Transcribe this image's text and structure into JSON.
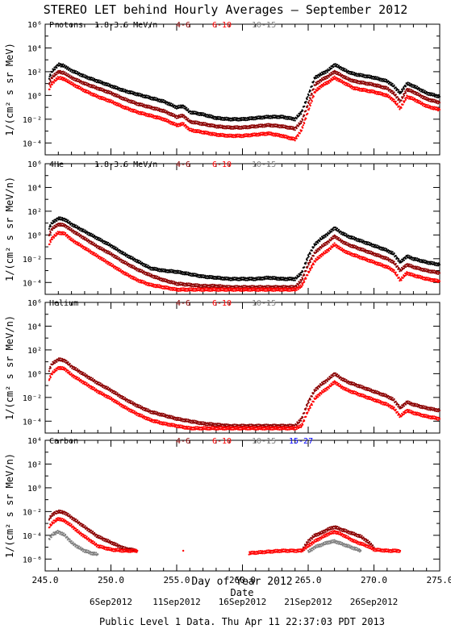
{
  "title": "STEREO LET behind Hourly Averages – September 2012",
  "xlabel": "Day of Year 2012",
  "date_label": "Date",
  "footer": "Public Level 1 Data. Thu Apr 11 22:37:03 PDT 2013",
  "x_ticks": [
    "245.0",
    "250.0",
    "255.0",
    "260.0",
    "265.0",
    "270.0",
    "275.0"
  ],
  "date_ticks": [
    {
      "label": "6Sep2012",
      "x": 250.0
    },
    {
      "label": "11Sep2012",
      "x": 255.0
    },
    {
      "label": "16Sep2012",
      "x": 260.0
    },
    {
      "label": "21Sep2012",
      "x": 265.0
    },
    {
      "label": "26Sep2012",
      "x": 270.0
    }
  ],
  "colors": {
    "e1": "#000000",
    "e2": "#8b0000",
    "e3": "#ff0000",
    "e4": "#808080",
    "e5": "#0000ff"
  },
  "chart_data": [
    {
      "type": "scatter",
      "species": "Protons",
      "energy_label": "1.8-3.6 MeV/n",
      "legend": [
        "4-6",
        "6-10",
        "10-15"
      ],
      "ylabel": "1/(cm² s sr MeV)",
      "y_ticks": [
        "10⁶",
        "10⁴",
        "10²",
        "10⁰",
        "10⁻²",
        "10⁻⁴"
      ],
      "ylim_log10": [
        -5,
        6
      ],
      "xlim": [
        245,
        275
      ],
      "series": [
        {
          "color_key": "e1",
          "x": [
            245.3,
            245.5,
            246.0,
            246.4,
            247.0,
            248.0,
            249.0,
            250.0,
            251.0,
            252.0,
            253.0,
            254.0,
            255.0,
            255.5,
            256.0,
            257.0,
            258.0,
            259.0,
            260.0,
            261.0,
            262.0,
            263.0,
            264.0,
            264.5,
            265.0,
            265.5,
            266.0,
            266.5,
            267.0,
            267.5,
            268.0,
            268.5,
            269.0,
            270.0,
            271.0,
            271.5,
            272.0,
            272.5,
            273.0,
            274.0,
            275.0
          ],
          "y": [
            1.5,
            2.0,
            2.6,
            2.5,
            2.1,
            1.6,
            1.2,
            0.8,
            0.4,
            0.1,
            -0.2,
            -0.5,
            -1.0,
            -0.9,
            -1.4,
            -1.6,
            -1.9,
            -2.0,
            -2.0,
            -1.9,
            -1.8,
            -1.8,
            -2.0,
            -1.4,
            0.0,
            1.5,
            1.8,
            2.1,
            2.6,
            2.3,
            2.0,
            1.8,
            1.7,
            1.5,
            1.2,
            0.8,
            0.2,
            1.0,
            0.8,
            0.2,
            -0.1
          ]
        },
        {
          "color_key": "e2",
          "x": [
            245.3,
            245.5,
            246.0,
            246.4,
            247.0,
            248.0,
            249.0,
            250.0,
            251.0,
            252.0,
            253.0,
            254.0,
            255.0,
            255.5,
            256.0,
            257.0,
            258.0,
            259.0,
            260.0,
            261.0,
            262.0,
            263.0,
            264.0,
            264.5,
            265.0,
            265.5,
            266.0,
            266.5,
            267.0,
            267.5,
            268.0,
            268.5,
            269.0,
            270.0,
            271.0,
            271.5,
            272.0,
            272.5,
            273.0,
            274.0,
            275.0
          ],
          "y": [
            1.0,
            1.5,
            2.0,
            1.9,
            1.5,
            1.0,
            0.6,
            0.2,
            -0.3,
            -0.7,
            -1.0,
            -1.3,
            -1.8,
            -1.7,
            -2.2,
            -2.4,
            -2.6,
            -2.7,
            -2.7,
            -2.6,
            -2.5,
            -2.6,
            -2.8,
            -2.2,
            -0.7,
            0.9,
            1.3,
            1.6,
            2.0,
            1.7,
            1.4,
            1.2,
            1.1,
            0.9,
            0.6,
            0.2,
            -0.5,
            0.5,
            0.3,
            -0.3,
            -0.6
          ]
        },
        {
          "color_key": "e3",
          "x": [
            245.3,
            245.5,
            246.0,
            246.4,
            247.0,
            248.0,
            249.0,
            250.0,
            251.0,
            252.0,
            253.0,
            254.0,
            255.0,
            255.5,
            256.0,
            257.0,
            258.0,
            259.0,
            260.0,
            261.0,
            262.0,
            263.0,
            264.0,
            264.5,
            265.0,
            265.5,
            266.0,
            266.5,
            267.0,
            267.5,
            268.0,
            268.5,
            269.0,
            270.0,
            271.0,
            271.5,
            272.0,
            272.5,
            273.0,
            274.0,
            275.0
          ],
          "y": [
            0.5,
            1.0,
            1.5,
            1.4,
            1.0,
            0.4,
            -0.1,
            -0.5,
            -1.0,
            -1.4,
            -1.7,
            -2.0,
            -2.5,
            -2.4,
            -2.9,
            -3.1,
            -3.3,
            -3.4,
            -3.4,
            -3.3,
            -3.2,
            -3.4,
            -3.7,
            -2.9,
            -1.3,
            0.3,
            0.8,
            1.1,
            1.5,
            1.2,
            0.9,
            0.6,
            0.5,
            0.3,
            0.0,
            -0.4,
            -1.1,
            -0.1,
            -0.3,
            -0.9,
            -1.2
          ]
        }
      ]
    },
    {
      "type": "scatter",
      "species": "4He",
      "energy_label": "1.8-3.6 MeV/n",
      "legend": [
        "4-6",
        "6-10",
        "10-15"
      ],
      "ylabel": "1/(cm² s sr MeV/n)",
      "y_ticks": [
        "10⁶",
        "10⁴",
        "10²",
        "10⁰",
        "10⁻²",
        "10⁻⁴"
      ],
      "ylim_log10": [
        -5,
        6
      ],
      "xlim": [
        245,
        275
      ],
      "series": [
        {
          "color_key": "e1",
          "x": [
            245.3,
            245.5,
            246.0,
            246.5,
            247.0,
            248.0,
            249.0,
            250.0,
            251.0,
            252.0,
            253.0,
            254.0,
            255.0,
            256.0,
            257.0,
            258.0,
            259.0,
            260.0,
            261.0,
            262.0,
            263.0,
            264.0,
            264.5,
            265.0,
            265.5,
            266.0,
            266.5,
            267.0,
            267.5,
            268.0,
            268.5,
            269.0,
            270.0,
            271.0,
            271.5,
            272.0,
            272.5,
            273.0,
            274.0,
            275.0
          ],
          "y": [
            0.6,
            1.0,
            1.4,
            1.3,
            0.9,
            0.3,
            -0.3,
            -0.9,
            -1.6,
            -2.2,
            -2.8,
            -3.0,
            -3.1,
            -3.3,
            -3.5,
            -3.6,
            -3.7,
            -3.7,
            -3.7,
            -3.6,
            -3.7,
            -3.7,
            -3.2,
            -1.8,
            -0.8,
            -0.3,
            0.1,
            0.6,
            0.2,
            -0.1,
            -0.3,
            -0.5,
            -0.9,
            -1.3,
            -1.6,
            -2.3,
            -1.8,
            -2.0,
            -2.3,
            -2.5
          ]
        },
        {
          "color_key": "e2",
          "x": [
            245.3,
            245.5,
            246.0,
            246.5,
            247.0,
            248.0,
            249.0,
            250.0,
            251.0,
            252.0,
            253.0,
            254.0,
            255.0,
            256.0,
            257.0,
            258.0,
            259.0,
            260.0,
            261.0,
            262.0,
            263.0,
            264.0,
            264.5,
            265.0,
            265.5,
            266.0,
            266.5,
            267.0,
            267.5,
            268.0,
            268.5,
            269.0,
            270.0,
            271.0,
            271.5,
            272.0,
            272.5,
            273.0,
            274.0,
            275.0
          ],
          "y": [
            0.0,
            0.5,
            0.9,
            0.8,
            0.4,
            -0.3,
            -1.0,
            -1.6,
            -2.3,
            -2.9,
            -3.4,
            -3.8,
            -4.1,
            -4.2,
            -4.3,
            -4.3,
            -4.4,
            -4.4,
            -4.4,
            -4.4,
            -4.4,
            -4.4,
            -3.8,
            -2.5,
            -1.5,
            -1.0,
            -0.6,
            -0.1,
            -0.5,
            -0.8,
            -1.0,
            -1.2,
            -1.6,
            -2.0,
            -2.3,
            -3.0,
            -2.5,
            -2.7,
            -3.0,
            -3.2
          ]
        },
        {
          "color_key": "e3",
          "x": [
            245.3,
            245.5,
            246.0,
            246.5,
            247.0,
            248.0,
            249.0,
            250.0,
            251.0,
            252.0,
            253.0,
            254.0,
            255.0,
            256.0,
            257.0,
            258.0,
            259.0,
            260.0,
            261.0,
            262.0,
            263.0,
            264.0,
            264.5,
            265.0,
            265.5,
            266.0,
            266.5,
            267.0,
            267.5,
            268.0,
            268.5,
            269.0,
            270.0,
            271.0,
            271.5,
            272.0,
            272.5,
            273.0,
            274.0,
            275.0
          ],
          "y": [
            -0.8,
            -0.3,
            0.2,
            0.1,
            -0.4,
            -1.1,
            -1.8,
            -2.5,
            -3.2,
            -3.8,
            -4.2,
            -4.4,
            -4.6,
            -4.6,
            -4.6,
            -4.6,
            -4.6,
            -4.6,
            -4.6,
            -4.6,
            -4.6,
            -4.6,
            -4.3,
            -3.2,
            -2.2,
            -1.7,
            -1.3,
            -0.8,
            -1.2,
            -1.5,
            -1.7,
            -1.9,
            -2.3,
            -2.7,
            -3.0,
            -3.8,
            -3.2,
            -3.4,
            -3.7,
            -3.9
          ]
        }
      ]
    },
    {
      "type": "scatter",
      "species": "Helium",
      "energy_label": "",
      "legend": [
        "4-6",
        "6-10",
        "10-15"
      ],
      "ylabel": "1/(cm² s sr MeV/n)",
      "y_ticks": [
        "10⁶",
        "10⁴",
        "10²",
        "10⁰",
        "10⁻²",
        "10⁻⁴"
      ],
      "ylim_log10": [
        -5,
        6
      ],
      "xlim": [
        245,
        275
      ],
      "series": [
        {
          "color_key": "e2",
          "x": [
            245.3,
            245.5,
            246.0,
            246.5,
            247.0,
            248.0,
            249.0,
            250.0,
            251.0,
            252.0,
            253.0,
            254.0,
            255.0,
            256.0,
            257.0,
            258.0,
            259.0,
            260.0,
            261.0,
            262.0,
            263.0,
            264.0,
            264.5,
            265.0,
            265.5,
            266.0,
            266.5,
            267.0,
            267.5,
            268.0,
            268.5,
            269.0,
            270.0,
            271.0,
            271.5,
            272.0,
            272.5,
            273.0,
            274.0,
            275.0
          ],
          "y": [
            0.3,
            0.8,
            1.2,
            1.1,
            0.6,
            -0.1,
            -0.8,
            -1.4,
            -2.1,
            -2.7,
            -3.2,
            -3.5,
            -3.8,
            -4.0,
            -4.2,
            -4.3,
            -4.4,
            -4.4,
            -4.4,
            -4.4,
            -4.4,
            -4.4,
            -3.8,
            -2.4,
            -1.4,
            -0.9,
            -0.5,
            0.0,
            -0.4,
            -0.7,
            -0.9,
            -1.1,
            -1.5,
            -1.9,
            -2.2,
            -2.9,
            -2.4,
            -2.6,
            -2.9,
            -3.1
          ]
        },
        {
          "color_key": "e3",
          "x": [
            245.3,
            245.5,
            246.0,
            246.5,
            247.0,
            248.0,
            249.0,
            250.0,
            251.0,
            252.0,
            253.0,
            254.0,
            255.0,
            256.0,
            257.0,
            258.0,
            259.0,
            260.0,
            261.0,
            262.0,
            263.0,
            264.0,
            264.5,
            265.0,
            265.5,
            266.0,
            266.5,
            267.0,
            267.5,
            268.0,
            268.5,
            269.0,
            270.0,
            271.0,
            271.5,
            272.0,
            272.5,
            273.0,
            274.0,
            275.0
          ],
          "y": [
            -0.5,
            0.0,
            0.5,
            0.4,
            -0.1,
            -0.8,
            -1.5,
            -2.1,
            -2.8,
            -3.4,
            -3.9,
            -4.2,
            -4.4,
            -4.6,
            -4.6,
            -4.6,
            -4.6,
            -4.6,
            -4.6,
            -4.6,
            -4.6,
            -4.6,
            -4.4,
            -3.1,
            -2.1,
            -1.6,
            -1.2,
            -0.7,
            -1.1,
            -1.4,
            -1.6,
            -1.8,
            -2.2,
            -2.6,
            -2.9,
            -3.6,
            -3.1,
            -3.3,
            -3.6,
            -3.8
          ]
        }
      ]
    },
    {
      "type": "scatter",
      "species": "Carbon",
      "energy_label": "",
      "legend": [
        "4-6",
        "6-10",
        "10-15",
        "15-27"
      ],
      "ylabel": "1/(cm² s sr MeV/n)",
      "y_ticks": [
        "10⁴",
        "10²",
        "10⁰",
        "10⁻²",
        "10⁻⁴",
        "10⁻⁶"
      ],
      "ylim_log10": [
        -7,
        4
      ],
      "xlim": [
        245,
        275
      ],
      "series": [
        {
          "color_key": "e2",
          "x": [
            245.3,
            245.6,
            246.0,
            246.5,
            247.0,
            247.5,
            248.0,
            248.5,
            249.0,
            250.0,
            251.0,
            252.0,
            264.5,
            265.0,
            265.5,
            266.0,
            266.5,
            267.0,
            267.5,
            268.0,
            268.5,
            269.0,
            269.5,
            270.0
          ],
          "y": [
            -2.6,
            -2.2,
            -2.0,
            -2.1,
            -2.5,
            -2.9,
            -3.3,
            -3.7,
            -4.1,
            -4.6,
            -5.1,
            -5.3,
            -5.3,
            -4.5,
            -4.0,
            -3.8,
            -3.5,
            -3.3,
            -3.5,
            -3.7,
            -3.9,
            -4.1,
            -4.5,
            -5.0
          ]
        },
        {
          "color_key": "e3",
          "x": [
            245.3,
            245.6,
            246.0,
            246.5,
            247.0,
            247.5,
            248.0,
            248.5,
            249.0,
            250.0,
            251.0,
            252.0,
            255.5,
            260.5,
            263.0,
            264.5,
            265.0,
            265.5,
            266.0,
            266.5,
            267.0,
            267.5,
            268.0,
            268.5,
            269.0,
            269.5,
            270.0,
            271.0,
            272.0
          ],
          "y": [
            -3.3,
            -2.9,
            -2.6,
            -2.8,
            -3.2,
            -3.7,
            -4.1,
            -4.5,
            -4.9,
            -5.2,
            -5.3,
            -5.3,
            -5.3,
            -5.5,
            -5.3,
            -5.3,
            -4.9,
            -4.5,
            -4.2,
            -3.9,
            -3.7,
            -3.9,
            -4.2,
            -4.5,
            -4.7,
            -4.9,
            -5.2,
            -5.3,
            -5.3
          ]
        },
        {
          "color_key": "e4",
          "x": [
            245.3,
            245.6,
            246.0,
            246.5,
            247.0,
            247.5,
            248.0,
            248.5,
            249.0,
            265.0,
            265.5,
            266.0,
            266.5,
            267.0,
            267.5,
            268.0,
            268.5,
            269.0
          ],
          "y": [
            -4.3,
            -3.9,
            -3.7,
            -4.0,
            -4.6,
            -5.0,
            -5.3,
            -5.5,
            -5.6,
            -5.4,
            -5.0,
            -4.8,
            -4.6,
            -4.5,
            -4.7,
            -4.9,
            -5.1,
            -5.3
          ]
        }
      ]
    }
  ]
}
